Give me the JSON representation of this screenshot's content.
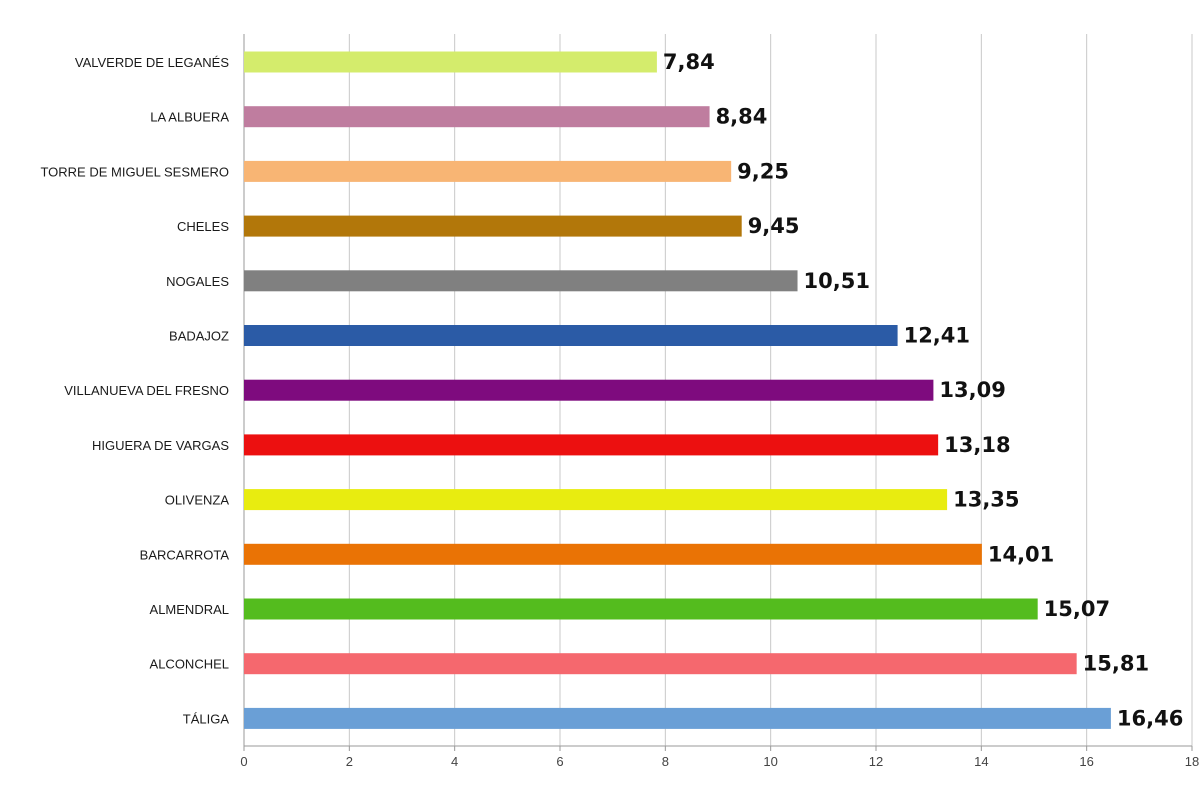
{
  "chart_data": {
    "type": "bar",
    "orientation": "horizontal",
    "categories": [
      "VALVERDE DE LEGANÉS",
      "LA ALBUERA",
      "TORRE DE MIGUEL SESMERO",
      "CHELES",
      "NOGALES",
      "BADAJOZ",
      "VILLANUEVA DEL FRESNO",
      "HIGUERA DE VARGAS",
      "OLIVENZA",
      "BARCARROTA",
      "ALMENDRAL",
      "ALCONCHEL",
      "TÁLIGA"
    ],
    "values": [
      7.84,
      8.84,
      9.25,
      9.45,
      10.51,
      12.41,
      13.09,
      13.18,
      13.35,
      14.01,
      15.07,
      15.81,
      16.46
    ],
    "value_labels": [
      "7,84",
      "8,84",
      "9,25",
      "9,45",
      "10,51",
      "12,41",
      "13,09",
      "13,18",
      "13,35",
      "14,01",
      "15,07",
      "15,81",
      "16,46"
    ],
    "colors": [
      "#d4ec6c",
      "#bf7d9f",
      "#f8b574",
      "#b2770a",
      "#808080",
      "#2b5ba6",
      "#7e0b7e",
      "#ec1010",
      "#e8ec10",
      "#ea7305",
      "#54bc1e",
      "#f5686e",
      "#6a9fd6"
    ],
    "title": "",
    "xlabel": "",
    "ylabel": "",
    "xlim": [
      0,
      18
    ],
    "x_ticks": [
      "0",
      "2",
      "4",
      "6",
      "8",
      "10",
      "12",
      "14",
      "16",
      "18"
    ],
    "grid": "vertical",
    "legend": "none"
  }
}
